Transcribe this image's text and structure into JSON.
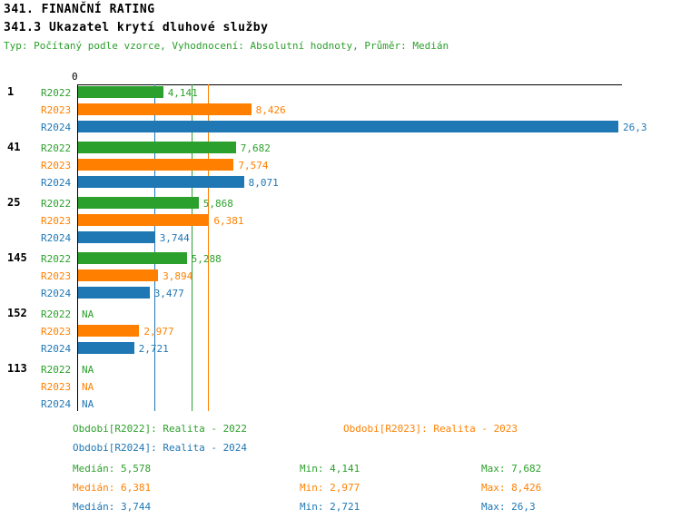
{
  "header": {
    "title": "341. FINANČNÍ RATING",
    "subtitle": "341.3 Ukazatel krytí dluhové služby",
    "meta": "Typ: Počítaný podle vzorce, Vyhodnocení: Absolutní hodnoty, Průměr: Medián"
  },
  "colors": {
    "series": [
      "#2CA02C",
      "#FF8000",
      "#1F77B4"
    ],
    "axis": "#000000",
    "background": "#ffffff"
  },
  "chart_data": {
    "type": "bar",
    "orientation": "horizontal",
    "x_origin_label": "0",
    "xlim": [
      0,
      26.3
    ],
    "grid": false,
    "series_names": [
      "R2022",
      "R2023",
      "R2024"
    ],
    "groups": [
      {
        "label": "1",
        "values": [
          4.141,
          8.426,
          26.3
        ],
        "value_labels": [
          "4,141",
          "8,426",
          "26,3"
        ]
      },
      {
        "label": "41",
        "values": [
          7.682,
          7.574,
          8.071
        ],
        "value_labels": [
          "7,682",
          "7,574",
          "8,071"
        ]
      },
      {
        "label": "25",
        "values": [
          5.868,
          6.381,
          3.744
        ],
        "value_labels": [
          "5,868",
          "6,381",
          "3,744"
        ]
      },
      {
        "label": "145",
        "values": [
          5.288,
          3.894,
          3.477
        ],
        "value_labels": [
          "5,288",
          "3,894",
          "3,477"
        ]
      },
      {
        "label": "152",
        "values": [
          null,
          2.977,
          2.721
        ],
        "value_labels": [
          "NA",
          "2,977",
          "2,721"
        ]
      },
      {
        "label": "113",
        "values": [
          null,
          null,
          null
        ],
        "value_labels": [
          "NA",
          "NA",
          "NA"
        ]
      }
    ],
    "median_lines": [
      {
        "series": "R2022",
        "value": 5.578
      },
      {
        "series": "R2023",
        "value": 6.381
      },
      {
        "series": "R2024",
        "value": 3.744
      }
    ]
  },
  "legend": {
    "r2022": "Období[R2022]: Realita - 2022",
    "r2023": "Období[R2023]: Realita - 2023",
    "r2024": "Období[R2024]: Realita - 2024"
  },
  "stats": [
    {
      "series": "R2022",
      "median": "Medián: 5,578",
      "min": "Min: 4,141",
      "max": "Max: 7,682"
    },
    {
      "series": "R2023",
      "median": "Medián: 6,381",
      "min": "Min: 2,977",
      "max": "Max: 8,426"
    },
    {
      "series": "R2024",
      "median": "Medián: 3,744",
      "min": "Min: 2,721",
      "max": "Max: 26,3"
    }
  ]
}
